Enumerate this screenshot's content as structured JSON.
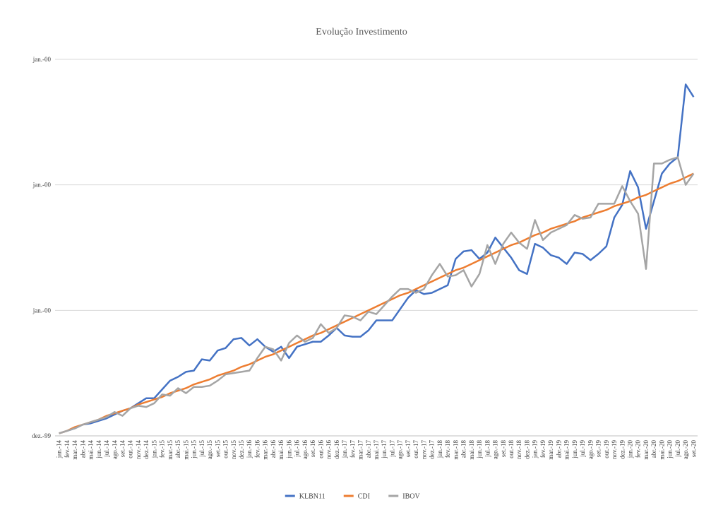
{
  "chart_data": {
    "type": "line",
    "title": "Evolução Investimento",
    "categories": [
      "jan.-14",
      "fev.-14",
      "mar.-14",
      "abr.-14",
      "mai.-14",
      "jun.-14",
      "jul.-14",
      "ago.-14",
      "set.-14",
      "out.-14",
      "nov.-14",
      "dez.-14",
      "jan.-15",
      "fev.-15",
      "mar.-15",
      "abr.-15",
      "mai.-15",
      "jun.-15",
      "jul.-15",
      "ago.-15",
      "set.-15",
      "out.-15",
      "nov.-15",
      "dez.-15",
      "jan.-16",
      "fev.-16",
      "mar.-16",
      "abr.-16",
      "mai.-16",
      "jun.-16",
      "jul.-16",
      "ago.-16",
      "set.-16",
      "out.-16",
      "nov.-16",
      "dez.-16",
      "jan.-17",
      "fev.-17",
      "mar.-17",
      "abr.-17",
      "mai.-17",
      "jun.-17",
      "jul.-17",
      "ago.-17",
      "set.-17",
      "out.-17",
      "nov.-17",
      "dez.-17",
      "jan.-18",
      "fev.-18",
      "mar.-18",
      "abr.-18",
      "mai.-18",
      "jun.-18",
      "jul.-18",
      "ago.-18",
      "set.-18",
      "out.-18",
      "nov.-18",
      "dez.-18",
      "jan.-19",
      "fev.-19",
      "mar.-19",
      "abr.-19",
      "mai.-19",
      "jun.-19",
      "jul.-19",
      "ago.-19",
      "set.-19",
      "out.-19",
      "nov.-19",
      "dez.-19",
      "jan.-20",
      "fev.-20",
      "mar.-20",
      "abr.-20",
      "mai.-20",
      "jun.-20",
      "jul.-20",
      "ago.-20",
      "set.-20"
    ],
    "series": [
      {
        "name": "KLBN11",
        "color": "#4472c4",
        "values": [
          0.02,
          0.04,
          0.06,
          0.09,
          0.1,
          0.12,
          0.14,
          0.17,
          0.2,
          0.22,
          0.26,
          0.3,
          0.3,
          0.37,
          0.44,
          0.47,
          0.51,
          0.52,
          0.61,
          0.6,
          0.68,
          0.7,
          0.77,
          0.78,
          0.72,
          0.77,
          0.71,
          0.67,
          0.71,
          0.62,
          0.71,
          0.73,
          0.75,
          0.75,
          0.8,
          0.86,
          0.8,
          0.79,
          0.79,
          0.84,
          0.92,
          0.92,
          0.92,
          1.01,
          1.1,
          1.16,
          1.13,
          1.14,
          1.17,
          1.2,
          1.41,
          1.47,
          1.48,
          1.41,
          1.46,
          1.58,
          1.5,
          1.42,
          1.32,
          1.29,
          1.53,
          1.5,
          1.44,
          1.42,
          1.37,
          1.46,
          1.45,
          1.4,
          1.45,
          1.51,
          1.74,
          1.84,
          2.11,
          1.98,
          1.65,
          1.87,
          2.09,
          2.17,
          2.22,
          2.8,
          2.7
        ]
      },
      {
        "name": "CDI",
        "color": "#ed7d31",
        "values": [
          0.02,
          0.04,
          0.07,
          0.09,
          0.11,
          0.13,
          0.16,
          0.18,
          0.2,
          0.22,
          0.25,
          0.27,
          0.29,
          0.31,
          0.34,
          0.36,
          0.38,
          0.41,
          0.43,
          0.45,
          0.48,
          0.5,
          0.52,
          0.55,
          0.57,
          0.6,
          0.63,
          0.65,
          0.68,
          0.71,
          0.74,
          0.77,
          0.8,
          0.82,
          0.85,
          0.88,
          0.91,
          0.94,
          0.97,
          1.0,
          1.03,
          1.06,
          1.09,
          1.12,
          1.14,
          1.17,
          1.2,
          1.23,
          1.26,
          1.29,
          1.32,
          1.34,
          1.37,
          1.4,
          1.43,
          1.46,
          1.49,
          1.52,
          1.54,
          1.57,
          1.6,
          1.62,
          1.65,
          1.67,
          1.69,
          1.71,
          1.74,
          1.76,
          1.78,
          1.8,
          1.83,
          1.85,
          1.87,
          1.9,
          1.92,
          1.95,
          1.98,
          2.01,
          2.03,
          2.06,
          2.09
        ]
      },
      {
        "name": "IBOV",
        "color": "#a5a5a5",
        "values": [
          0.02,
          0.04,
          0.06,
          0.09,
          0.11,
          0.13,
          0.15,
          0.19,
          0.16,
          0.22,
          0.24,
          0.23,
          0.26,
          0.33,
          0.32,
          0.38,
          0.34,
          0.39,
          0.39,
          0.4,
          0.44,
          0.49,
          0.5,
          0.51,
          0.52,
          0.62,
          0.71,
          0.69,
          0.6,
          0.74,
          0.8,
          0.75,
          0.78,
          0.89,
          0.82,
          0.86,
          0.96,
          0.95,
          0.92,
          0.99,
          0.97,
          1.04,
          1.11,
          1.17,
          1.17,
          1.14,
          1.17,
          1.28,
          1.37,
          1.27,
          1.28,
          1.32,
          1.19,
          1.29,
          1.52,
          1.37,
          1.53,
          1.62,
          1.54,
          1.49,
          1.72,
          1.56,
          1.62,
          1.65,
          1.68,
          1.76,
          1.73,
          1.74,
          1.85,
          1.85,
          1.85,
          1.99,
          1.87,
          1.77,
          1.33,
          2.17,
          2.17,
          2.2,
          2.22,
          2.0,
          2.09
        ]
      }
    ],
    "ylim": [
      0,
      3
    ],
    "yticks": [
      {
        "value": 0,
        "label": "dez.-99"
      },
      {
        "value": 1,
        "label": "jan.-00"
      },
      {
        "value": 2,
        "label": "jan.-00"
      },
      {
        "value": 3,
        "label": "jan.-00"
      }
    ],
    "grid": true,
    "legend": "bottom"
  }
}
